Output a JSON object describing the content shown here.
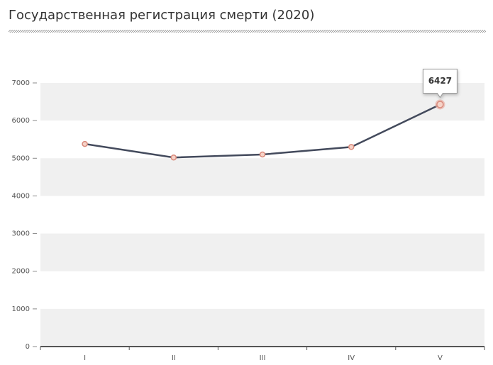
{
  "chart_data": {
    "type": "line",
    "title": "Государственная регистрация смерти (2020)",
    "categories": [
      "I",
      "II",
      "III",
      "IV",
      "V"
    ],
    "values": [
      5380,
      5020,
      5100,
      5300,
      6427
    ],
    "color": "#434a5c",
    "ylim": [
      0,
      7000
    ],
    "yticks": [
      0,
      1000,
      2000,
      3000,
      4000,
      5000,
      6000,
      7000
    ],
    "grid": true
  }
}
